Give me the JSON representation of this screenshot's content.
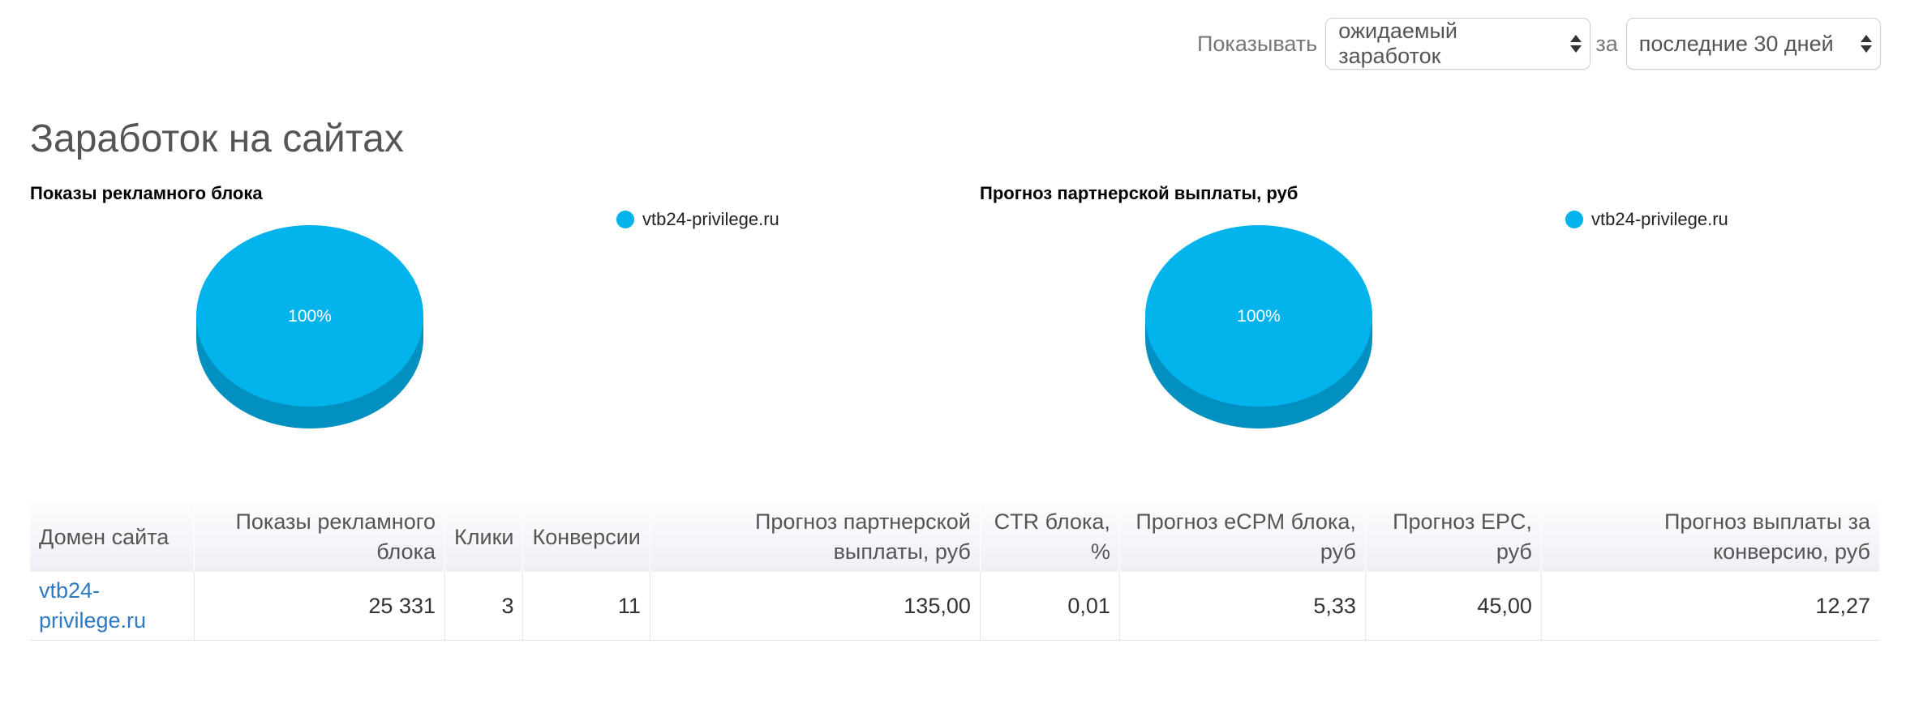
{
  "filters": {
    "show_label": "Показывать",
    "show_value": "ожидаемый заработок",
    "period_label": "за",
    "period_value": "последние 30 дней"
  },
  "page_title": "Заработок на сайтах",
  "colors": {
    "pie": "#03b3ec",
    "pie_side": "#0190c0",
    "link": "#2f78c2"
  },
  "chart_data": [
    {
      "type": "pie",
      "title": "Показы рекламного блока",
      "slices": [
        {
          "label": "vtb24-privilege.ru",
          "value": 100,
          "display": "100%"
        }
      ],
      "legend": "top-right"
    },
    {
      "type": "pie",
      "title": "Прогноз партнерской выплаты, руб",
      "slices": [
        {
          "label": "vtb24-privilege.ru",
          "value": 100,
          "display": "100%"
        }
      ],
      "legend": "top-right"
    }
  ],
  "table": {
    "headers": [
      "Домен сайта",
      "Показы рекламного блока",
      "Клики",
      "Конверсии",
      "Прогноз партнерской выплаты, руб",
      "CTR блока, %",
      "Прогноз eCPM блока, руб",
      "Прогноз EPC, руб",
      "Прогноз выплаты за конверсию, руб"
    ],
    "rows": [
      [
        "vtb24-privilege.ru",
        "25 331",
        "3",
        "11",
        "135,00",
        "0,01",
        "5,33",
        "45,00",
        "12,27"
      ]
    ]
  }
}
